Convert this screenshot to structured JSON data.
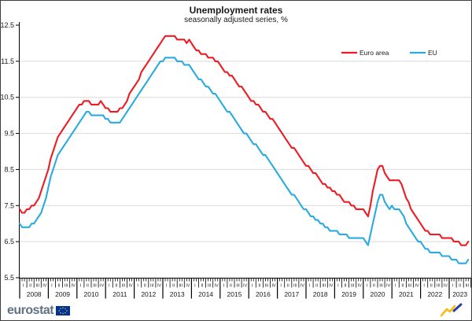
{
  "header": {
    "title": "Unemployment rates",
    "subtitle": "seasonally adjusted series, %"
  },
  "footer": {
    "brand": "eurostat"
  },
  "chart_data": {
    "type": "line",
    "title": "Unemployment rates",
    "subtitle": "seasonally adjusted series, %",
    "x": {
      "frequency": "monthly",
      "start_year": 2008,
      "start_month": 1,
      "end_year": 2023,
      "end_month": 9,
      "years": [
        2008,
        2009,
        2010,
        2011,
        2012,
        2013,
        2014,
        2015,
        2016,
        2017,
        2018,
        2019,
        2020,
        2021,
        2022,
        2023
      ],
      "quarter_labels": [
        "I",
        "II",
        "III",
        "IV"
      ]
    },
    "ylabel": "",
    "xlabel": "",
    "ylim": [
      5.5,
      12.5
    ],
    "yticks": [
      5.5,
      6.5,
      7.5,
      8.5,
      9.5,
      10.5,
      11.5,
      12.5
    ],
    "gridline_values": [
      6.5,
      7.5,
      8.5,
      9.5,
      10.5,
      11.5
    ],
    "grid_color": "#d9d9d9",
    "axis_color": "#000000",
    "legend_position": "top-right",
    "series": [
      {
        "name": "Euro area",
        "color": "#ed1c24",
        "values": [
          7.4,
          7.3,
          7.3,
          7.4,
          7.4,
          7.5,
          7.5,
          7.6,
          7.7,
          7.9,
          8.1,
          8.3,
          8.5,
          8.8,
          9.0,
          9.2,
          9.4,
          9.5,
          9.6,
          9.7,
          9.8,
          9.9,
          10.0,
          10.1,
          10.2,
          10.3,
          10.3,
          10.4,
          10.4,
          10.4,
          10.3,
          10.3,
          10.3,
          10.3,
          10.4,
          10.3,
          10.2,
          10.2,
          10.1,
          10.1,
          10.1,
          10.1,
          10.2,
          10.2,
          10.3,
          10.4,
          10.6,
          10.7,
          10.8,
          10.9,
          11.0,
          11.2,
          11.3,
          11.4,
          11.5,
          11.6,
          11.7,
          11.8,
          11.9,
          12.0,
          12.1,
          12.2,
          12.2,
          12.2,
          12.2,
          12.2,
          12.1,
          12.1,
          12.1,
          12.1,
          12.0,
          12.1,
          12.0,
          11.9,
          11.8,
          11.8,
          11.7,
          11.7,
          11.7,
          11.6,
          11.6,
          11.6,
          11.5,
          11.5,
          11.4,
          11.3,
          11.2,
          11.2,
          11.1,
          11.1,
          11.0,
          10.9,
          10.8,
          10.8,
          10.7,
          10.6,
          10.5,
          10.4,
          10.4,
          10.3,
          10.3,
          10.2,
          10.1,
          10.1,
          10.0,
          9.9,
          9.9,
          9.8,
          9.7,
          9.6,
          9.5,
          9.4,
          9.3,
          9.2,
          9.1,
          9.1,
          9.0,
          8.9,
          8.8,
          8.7,
          8.6,
          8.6,
          8.5,
          8.4,
          8.4,
          8.3,
          8.2,
          8.1,
          8.1,
          8.0,
          8.0,
          7.9,
          7.9,
          7.8,
          7.8,
          7.7,
          7.6,
          7.6,
          7.6,
          7.5,
          7.5,
          7.4,
          7.4,
          7.4,
          7.4,
          7.3,
          7.2,
          7.5,
          7.9,
          8.2,
          8.5,
          8.6,
          8.6,
          8.4,
          8.3,
          8.2,
          8.2,
          8.2,
          8.2,
          8.2,
          8.1,
          7.9,
          7.7,
          7.6,
          7.4,
          7.3,
          7.2,
          7.1,
          7.0,
          6.9,
          6.8,
          6.8,
          6.7,
          6.7,
          6.7,
          6.7,
          6.7,
          6.6,
          6.6,
          6.6,
          6.6,
          6.6,
          6.5,
          6.5,
          6.5,
          6.4,
          6.4,
          6.4,
          6.5
        ]
      },
      {
        "name": "EU",
        "color": "#29abe2",
        "values": [
          7.0,
          6.9,
          6.9,
          6.9,
          6.9,
          7.0,
          7.0,
          7.1,
          7.2,
          7.3,
          7.5,
          7.7,
          8.0,
          8.3,
          8.5,
          8.7,
          8.9,
          9.0,
          9.1,
          9.2,
          9.3,
          9.4,
          9.5,
          9.6,
          9.7,
          9.8,
          9.9,
          10.0,
          10.1,
          10.1,
          10.0,
          10.0,
          10.0,
          10.0,
          10.0,
          10.0,
          9.9,
          9.9,
          9.8,
          9.8,
          9.8,
          9.8,
          9.8,
          9.9,
          10.0,
          10.1,
          10.2,
          10.3,
          10.4,
          10.5,
          10.6,
          10.7,
          10.8,
          10.9,
          11.0,
          11.1,
          11.2,
          11.3,
          11.4,
          11.5,
          11.5,
          11.6,
          11.6,
          11.6,
          11.6,
          11.6,
          11.5,
          11.5,
          11.5,
          11.4,
          11.4,
          11.4,
          11.3,
          11.2,
          11.1,
          11.0,
          11.0,
          10.9,
          10.8,
          10.8,
          10.7,
          10.6,
          10.6,
          10.5,
          10.4,
          10.3,
          10.2,
          10.1,
          10.1,
          10.0,
          9.9,
          9.8,
          9.7,
          9.6,
          9.5,
          9.5,
          9.4,
          9.3,
          9.2,
          9.2,
          9.1,
          9.0,
          8.9,
          8.9,
          8.8,
          8.7,
          8.6,
          8.5,
          8.4,
          8.3,
          8.2,
          8.1,
          8.0,
          7.9,
          7.8,
          7.8,
          7.7,
          7.6,
          7.5,
          7.4,
          7.4,
          7.3,
          7.2,
          7.2,
          7.1,
          7.1,
          7.0,
          7.0,
          6.9,
          6.9,
          6.8,
          6.8,
          6.8,
          6.8,
          6.7,
          6.7,
          6.7,
          6.7,
          6.6,
          6.6,
          6.6,
          6.6,
          6.6,
          6.6,
          6.6,
          6.5,
          6.4,
          6.7,
          7.0,
          7.3,
          7.6,
          7.8,
          7.8,
          7.6,
          7.5,
          7.4,
          7.5,
          7.4,
          7.4,
          7.4,
          7.3,
          7.2,
          7.0,
          6.9,
          6.8,
          6.7,
          6.6,
          6.5,
          6.5,
          6.4,
          6.3,
          6.3,
          6.2,
          6.2,
          6.2,
          6.2,
          6.2,
          6.1,
          6.1,
          6.1,
          6.1,
          6.0,
          6.0,
          6.0,
          5.9,
          5.9,
          5.9,
          5.9,
          6.0
        ]
      }
    ]
  }
}
